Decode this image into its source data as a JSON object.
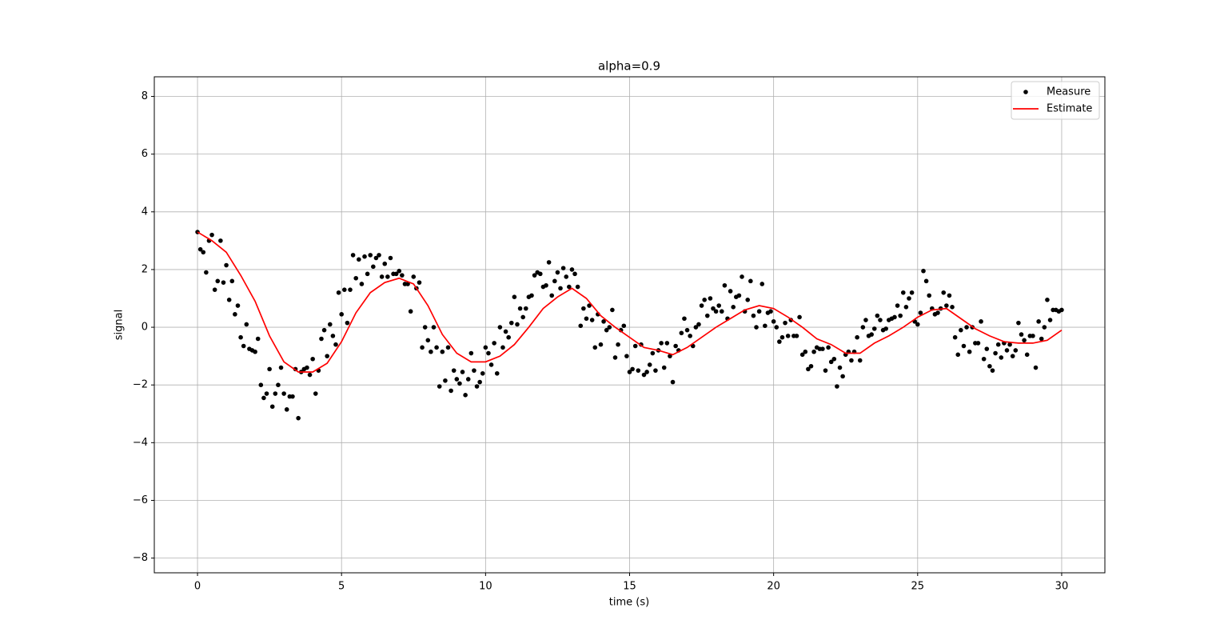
{
  "chart_data": {
    "type": "line",
    "title": "alpha=0.9",
    "x_label": "time (s)",
    "y_label": "signal",
    "xlim": [
      -1.5,
      31.5
    ],
    "ylim": [
      -8.51,
      8.68
    ],
    "xticks": [
      0,
      5,
      10,
      15,
      20,
      25,
      30
    ],
    "yticks": [
      {
        "value": -8,
        "label": "−8"
      },
      {
        "value": -6,
        "label": "−6"
      },
      {
        "value": -4,
        "label": "−4"
      },
      {
        "value": -2,
        "label": "−2"
      },
      0,
      2,
      4,
      6,
      8
    ],
    "grid": true,
    "legend": "upper right",
    "series": [
      {
        "name": "Measure",
        "color": "#000000",
        "marker": "dot",
        "x": [
          0,
          0.1,
          0.2,
          0.3,
          0.4,
          0.5,
          0.6,
          0.7,
          0.8,
          0.9,
          1,
          1.1,
          1.2,
          1.3,
          1.4,
          1.5,
          1.6,
          1.7,
          1.8,
          1.9,
          2,
          2.1,
          2.2,
          2.3,
          2.4,
          2.5,
          2.6,
          2.7,
          2.8,
          2.9,
          3,
          3.1,
          3.2,
          3.3,
          3.4,
          3.5,
          3.6,
          3.7,
          3.8,
          3.9,
          4,
          4.1,
          4.2,
          4.3,
          4.4,
          4.5,
          4.6,
          4.7,
          4.8,
          4.9,
          5,
          5.1,
          5.2,
          5.3,
          5.4,
          5.5,
          5.6,
          5.7,
          5.8,
          5.9,
          6,
          6.1,
          6.2,
          6.3,
          6.4,
          6.5,
          6.6,
          6.7,
          6.8,
          6.9,
          7,
          7.1,
          7.2,
          7.3,
          7.4,
          7.5,
          7.6,
          7.7,
          7.8,
          7.9,
          8,
          8.1,
          8.2,
          8.3,
          8.4,
          8.5,
          8.6,
          8.7,
          8.8,
          8.9,
          9,
          9.1,
          9.2,
          9.3,
          9.4,
          9.5,
          9.6,
          9.7,
          9.8,
          9.9,
          10,
          10.1,
          10.2,
          10.3,
          10.4,
          10.5,
          10.6,
          10.7,
          10.8,
          10.9,
          11,
          11.1,
          11.2,
          11.3,
          11.4,
          11.5,
          11.6,
          11.7,
          11.8,
          11.9,
          12,
          12.1,
          12.2,
          12.3,
          12.4,
          12.5,
          12.6,
          12.7,
          12.8,
          12.9,
          13,
          13.1,
          13.2,
          13.3,
          13.4,
          13.5,
          13.6,
          13.7,
          13.8,
          13.9,
          14,
          14.1,
          14.2,
          14.3,
          14.4,
          14.5,
          14.6,
          14.7,
          14.8,
          14.9,
          15,
          15.1,
          15.2,
          15.3,
          15.4,
          15.5,
          15.6,
          15.7,
          15.8,
          15.9,
          16,
          16.1,
          16.2,
          16.3,
          16.4,
          16.5,
          16.6,
          16.7,
          16.8,
          16.9,
          17,
          17.1,
          17.2,
          17.3,
          17.4,
          17.5,
          17.6,
          17.7,
          17.8,
          17.9,
          18,
          18.1,
          18.2,
          18.3,
          18.4,
          18.5,
          18.6,
          18.7,
          18.8,
          18.9,
          19,
          19.1,
          19.2,
          19.3,
          19.4,
          19.5,
          19.6,
          19.7,
          19.8,
          19.9,
          20,
          20.1,
          20.2,
          20.3,
          20.4,
          20.5,
          20.6,
          20.7,
          20.8,
          20.9,
          21,
          21.1,
          21.2,
          21.3,
          21.4,
          21.5,
          21.6,
          21.7,
          21.8,
          21.9,
          22,
          22.1,
          22.2,
          22.3,
          22.4,
          22.5,
          22.6,
          22.7,
          22.8,
          22.9,
          23,
          23.1,
          23.2,
          23.3,
          23.4,
          23.5,
          23.6,
          23.7,
          23.8,
          23.9,
          24,
          24.1,
          24.2,
          24.3,
          24.4,
          24.5,
          24.6,
          24.7,
          24.8,
          24.9,
          25,
          25.1,
          25.2,
          25.3,
          25.4,
          25.5,
          25.6,
          25.7,
          25.8,
          25.9,
          26,
          26.1,
          26.2,
          26.3,
          26.4,
          26.5,
          26.6,
          26.7,
          26.8,
          26.9,
          27,
          27.1,
          27.2,
          27.3,
          27.4,
          27.5,
          27.6,
          27.7,
          27.8,
          27.9,
          28,
          28.1,
          28.2,
          28.3,
          28.4,
          28.5,
          28.6,
          28.7,
          28.8,
          28.9,
          29,
          29.1,
          29.2,
          29.3,
          29.4,
          29.5,
          29.6,
          29.7,
          29.8,
          29.9,
          30
        ],
        "values": [
          3.3,
          2.7,
          2.6,
          1.9,
          3.0,
          3.2,
          1.3,
          1.6,
          3.0,
          1.55,
          2.15,
          0.95,
          1.6,
          0.45,
          0.75,
          -0.35,
          -0.65,
          0.1,
          -0.75,
          -0.8,
          -0.85,
          -0.4,
          -2.0,
          -2.45,
          -2.3,
          -1.45,
          -2.75,
          -2.3,
          -2.0,
          -1.4,
          -2.3,
          -2.85,
          -2.4,
          -2.4,
          -1.45,
          -3.15,
          -1.55,
          -1.45,
          -1.4,
          -1.65,
          -1.1,
          -2.3,
          -1.5,
          -0.4,
          -0.1,
          -1.0,
          0.1,
          -0.3,
          -0.6,
          1.2,
          0.45,
          1.3,
          0.15,
          1.3,
          2.5,
          1.7,
          2.35,
          1.5,
          2.45,
          1.85,
          2.5,
          2.1,
          2.4,
          2.5,
          1.75,
          2.2,
          1.75,
          2.4,
          1.85,
          1.85,
          1.95,
          1.8,
          1.5,
          1.5,
          0.55,
          1.75,
          1.35,
          1.55,
          -0.7,
          0.0,
          -0.45,
          -0.85,
          0.0,
          -0.7,
          -2.05,
          -0.85,
          -1.85,
          -0.7,
          -2.2,
          -1.5,
          -1.8,
          -1.95,
          -1.55,
          -2.35,
          -1.8,
          -0.9,
          -1.5,
          -2.05,
          -1.9,
          -1.6,
          -0.7,
          -0.9,
          -1.3,
          -0.55,
          -1.6,
          0.0,
          -0.7,
          -0.15,
          -0.35,
          0.15,
          1.05,
          0.1,
          0.65,
          0.35,
          0.65,
          1.05,
          1.1,
          1.8,
          1.9,
          1.85,
          1.4,
          1.45,
          2.25,
          1.1,
          1.6,
          1.9,
          1.35,
          2.05,
          1.75,
          1.4,
          2.0,
          1.85,
          1.4,
          0.05,
          0.65,
          0.3,
          0.75,
          0.25,
          -0.7,
          0.45,
          -0.6,
          0.2,
          -0.1,
          0.0,
          0.6,
          -1.05,
          -0.6,
          -0.1,
          0.05,
          -1.0,
          -1.55,
          -1.45,
          -0.65,
          -1.5,
          -0.6,
          -1.65,
          -1.55,
          -1.3,
          -0.9,
          -1.5,
          -0.8,
          -0.55,
          -1.4,
          -0.55,
          -1.0,
          -1.9,
          -0.65,
          -0.8,
          -0.2,
          0.3,
          -0.1,
          -0.3,
          -0.65,
          0.0,
          0.1,
          0.75,
          0.95,
          0.4,
          1.0,
          0.65,
          0.55,
          0.75,
          0.55,
          1.45,
          0.3,
          1.25,
          0.7,
          1.05,
          1.1,
          1.75,
          0.55,
          0.95,
          1.6,
          0.4,
          0.0,
          0.55,
          1.5,
          0.05,
          0.5,
          0.55,
          0.2,
          0.0,
          -0.5,
          -0.35,
          0.15,
          -0.3,
          0.25,
          -0.3,
          -0.3,
          0.35,
          -0.95,
          -0.85,
          -1.45,
          -1.35,
          -0.85,
          -0.7,
          -0.75,
          -0.75,
          -1.5,
          -0.7,
          -1.2,
          -1.1,
          -2.05,
          -1.4,
          -1.7,
          -0.95,
          -0.85,
          -1.15,
          -0.85,
          -0.35,
          -1.15,
          0.0,
          0.25,
          -0.3,
          -0.25,
          -0.05,
          0.4,
          0.25,
          -0.1,
          -0.05,
          0.25,
          0.3,
          0.35,
          0.75,
          0.4,
          1.2,
          0.7,
          1.0,
          1.2,
          0.2,
          0.1,
          0.5,
          1.95,
          1.6,
          1.1,
          0.65,
          0.45,
          0.5,
          0.65,
          1.2,
          0.75,
          1.1,
          0.7,
          -0.35,
          -0.95,
          -0.1,
          -0.65,
          0.0,
          -0.85,
          0.0,
          -0.55,
          -0.55,
          0.2,
          -1.1,
          -0.75,
          -1.35,
          -1.5,
          -0.9,
          -0.6,
          -1.05,
          -0.55,
          -0.8,
          -0.6,
          -1.0,
          -0.8,
          0.15,
          -0.25,
          -0.45,
          -0.95,
          -0.3,
          -0.3,
          -1.4,
          0.2,
          -0.4,
          0.0,
          0.95,
          0.25,
          0.6,
          0.6,
          0.55,
          0.6
        ]
      },
      {
        "name": "Estimate",
        "color": "#ff0000",
        "x": [
          0,
          0.5,
          1,
          1.5,
          2,
          2.5,
          3,
          3.5,
          4,
          4.5,
          5,
          5.5,
          6,
          6.5,
          7,
          7.5,
          8,
          8.5,
          9,
          9.5,
          10,
          10.5,
          11,
          11.5,
          12,
          12.5,
          13,
          13.5,
          14,
          14.5,
          15,
          15.5,
          16,
          16.5,
          17,
          17.5,
          18,
          18.5,
          19,
          19.5,
          20,
          20.5,
          21,
          21.5,
          22,
          22.5,
          23,
          23.5,
          24,
          24.5,
          25,
          25.5,
          26,
          26.5,
          27,
          27.5,
          28,
          28.5,
          29,
          29.5,
          30
        ],
        "values": [
          3.3,
          3.0,
          2.6,
          1.8,
          0.9,
          -0.3,
          -1.2,
          -1.55,
          -1.55,
          -1.25,
          -0.5,
          0.5,
          1.2,
          1.55,
          1.7,
          1.5,
          0.75,
          -0.25,
          -0.9,
          -1.2,
          -1.2,
          -1.0,
          -0.6,
          0.0,
          0.65,
          1.05,
          1.35,
          1.0,
          0.4,
          0.0,
          -0.35,
          -0.7,
          -0.8,
          -0.95,
          -0.7,
          -0.35,
          0.0,
          0.3,
          0.6,
          0.75,
          0.65,
          0.35,
          0.0,
          -0.4,
          -0.6,
          -0.9,
          -0.9,
          -0.55,
          -0.3,
          0.0,
          0.35,
          0.6,
          0.65,
          0.3,
          -0.05,
          -0.3,
          -0.5,
          -0.55,
          -0.55,
          -0.45,
          -0.1
        ]
      }
    ]
  }
}
